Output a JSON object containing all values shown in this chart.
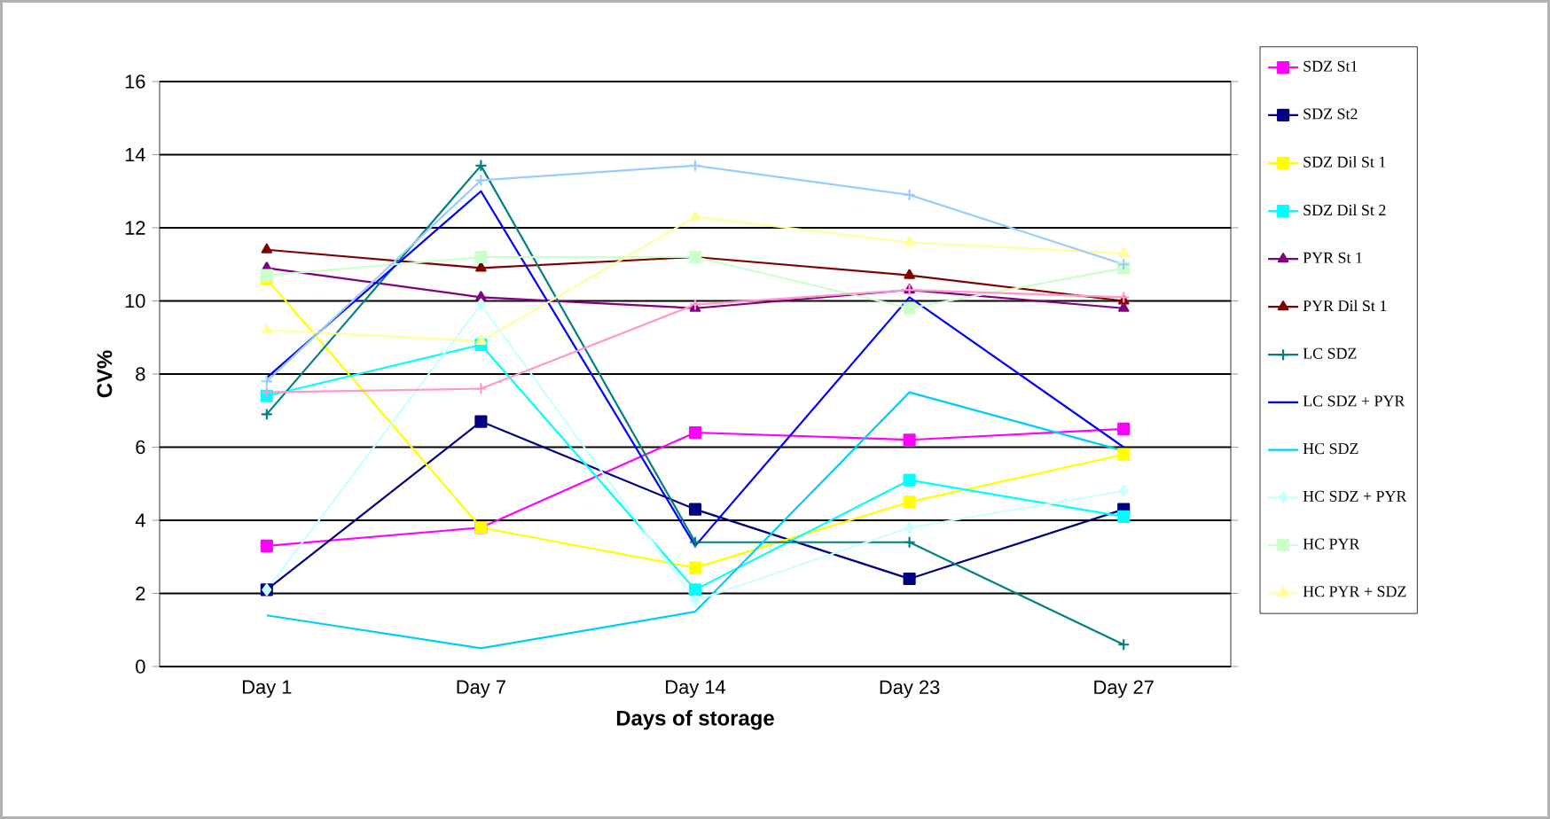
{
  "chart_data": {
    "type": "line",
    "xlabel": "Days of storage",
    "ylabel": "CV%",
    "categories": [
      "Day 1",
      "Day 7",
      "Day 14",
      "Day 23",
      "Day 27"
    ],
    "ylim": [
      0,
      16
    ],
    "yticks": [
      0,
      2,
      4,
      6,
      8,
      10,
      12,
      14,
      16
    ],
    "grid": "y",
    "legend": "right",
    "series": [
      {
        "name": "SDZ St1",
        "color": "#ff00ff",
        "marker": "square",
        "values": [
          3.3,
          3.8,
          6.4,
          6.2,
          6.5
        ]
      },
      {
        "name": "SDZ St2",
        "color": "#000080",
        "marker": "square",
        "values": [
          2.1,
          6.7,
          4.3,
          2.4,
          4.3
        ]
      },
      {
        "name": "SDZ Dil St 1",
        "color": "#ffff00",
        "marker": "square",
        "values": [
          10.6,
          3.8,
          2.7,
          4.5,
          5.8
        ]
      },
      {
        "name": "SDZ Dil St 2",
        "color": "#00ffff",
        "marker": "square",
        "values": [
          7.4,
          8.8,
          2.1,
          5.1,
          4.1
        ]
      },
      {
        "name": "PYR St 1",
        "color": "#800080",
        "marker": "triangle",
        "values": [
          10.9,
          10.1,
          9.8,
          10.3,
          9.8
        ]
      },
      {
        "name": "PYR Dil St 1",
        "color": "#800000",
        "marker": "triangle",
        "values": [
          11.4,
          10.9,
          11.2,
          10.7,
          10.0
        ]
      },
      {
        "name": "LC SDZ",
        "color": "#008080",
        "marker": "cross",
        "values": [
          6.9,
          13.7,
          3.4,
          3.4,
          0.6
        ]
      },
      {
        "name": "LC SDZ + PYR",
        "color": "#0000ff",
        "marker": "none",
        "values": [
          7.9,
          13.0,
          3.3,
          10.1,
          6.0
        ]
      },
      {
        "name": "HC SDZ",
        "color": "#00ccff",
        "marker": "none",
        "values": [
          1.4,
          0.5,
          1.5,
          7.5,
          5.9
        ]
      },
      {
        "name": "HC SDZ + PYR",
        "color": "#ccffff",
        "marker": "diamond",
        "values": [
          2.1,
          9.9,
          1.8,
          3.8,
          4.8
        ]
      },
      {
        "name": "HC PYR",
        "color": "#ccffcc",
        "marker": "square",
        "values": [
          10.7,
          11.2,
          11.2,
          9.8,
          10.9
        ]
      },
      {
        "name": "HC PYR + SDZ",
        "color": "#ffff99",
        "marker": "triangle",
        "values": [
          9.2,
          8.9,
          12.3,
          11.6,
          11.3
        ]
      },
      {
        "color": "#99ccff",
        "marker": "cross",
        "values": [
          7.8,
          13.3,
          13.7,
          12.9,
          11.0
        ]
      },
      {
        "color": "#ff99cc",
        "marker": "cross",
        "values": [
          7.5,
          7.6,
          9.9,
          10.3,
          10.1
        ]
      }
    ]
  }
}
